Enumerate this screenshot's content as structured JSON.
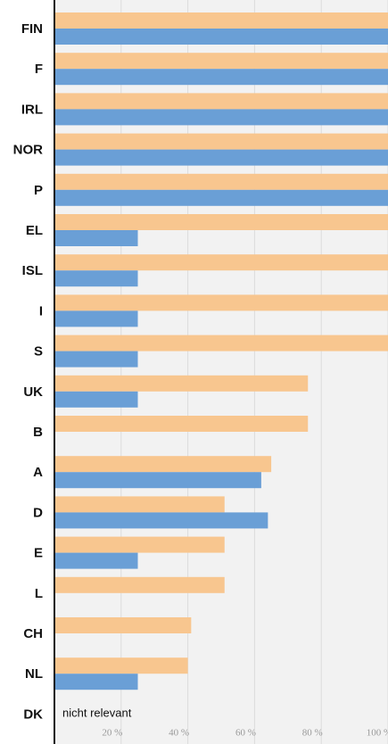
{
  "chart_data": {
    "type": "bar",
    "orientation": "horizontal",
    "categories": [
      "FIN",
      "F",
      "IRL",
      "NOR",
      "P",
      "EL",
      "ISL",
      "I",
      "S",
      "UK",
      "B",
      "A",
      "D",
      "E",
      "L",
      "CH",
      "NL",
      "DK"
    ],
    "series": [
      {
        "color": "#f8c68f",
        "values": [
          100,
          100,
          100,
          100,
          100,
          100,
          100,
          100,
          100,
          76,
          76,
          65,
          51,
          51,
          51,
          41,
          40,
          null
        ]
      },
      {
        "color": "#6a9fd6",
        "values": [
          100,
          100,
          100,
          100,
          100,
          25,
          25,
          25,
          25,
          25,
          null,
          62,
          64,
          25,
          null,
          null,
          25,
          null
        ]
      }
    ],
    "annotation": "nicht relevant",
    "xlim": [
      0,
      100
    ],
    "xticks": [
      {
        "value": 20,
        "label": "20 %"
      },
      {
        "value": 40,
        "label": "40 %"
      },
      {
        "value": 60,
        "label": "60 %"
      },
      {
        "value": 80,
        "label": "80 %"
      },
      {
        "value": 100,
        "label": "100 %"
      }
    ],
    "grid": true
  }
}
